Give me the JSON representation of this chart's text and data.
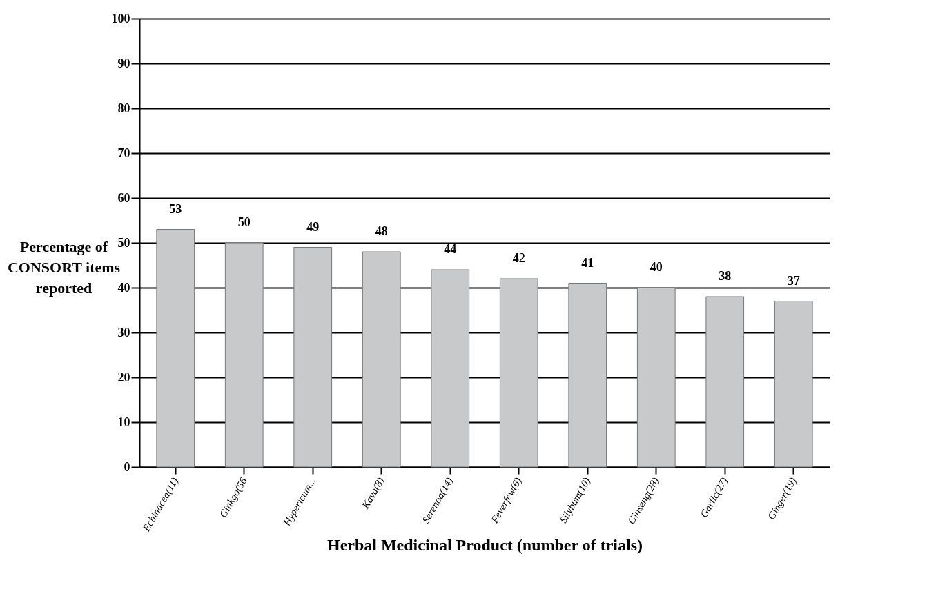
{
  "chart_data": {
    "type": "bar",
    "xlabel": "Herbal Medicinal Product (number of trials)",
    "ylabel": "Percentage of\nCONSORT items\nreported",
    "categories": [
      "Echinacea(11)",
      "Ginkgo(56",
      "Hypericum...",
      "Kava(8)",
      "Serenoa(14)",
      "Feverfew(6)",
      "Silybum(10)",
      "Ginseng(28)",
      "Garlic(27)",
      "Ginger(19)"
    ],
    "values": [
      53,
      50,
      49,
      48,
      44,
      42,
      41,
      40,
      38,
      37
    ],
    "color": "#c8c9cb",
    "ylim": [
      0,
      100
    ],
    "yticks": [
      0,
      10,
      20,
      30,
      40,
      50,
      60,
      70,
      80,
      90,
      100
    ],
    "grid": true,
    "data_labels": true
  }
}
